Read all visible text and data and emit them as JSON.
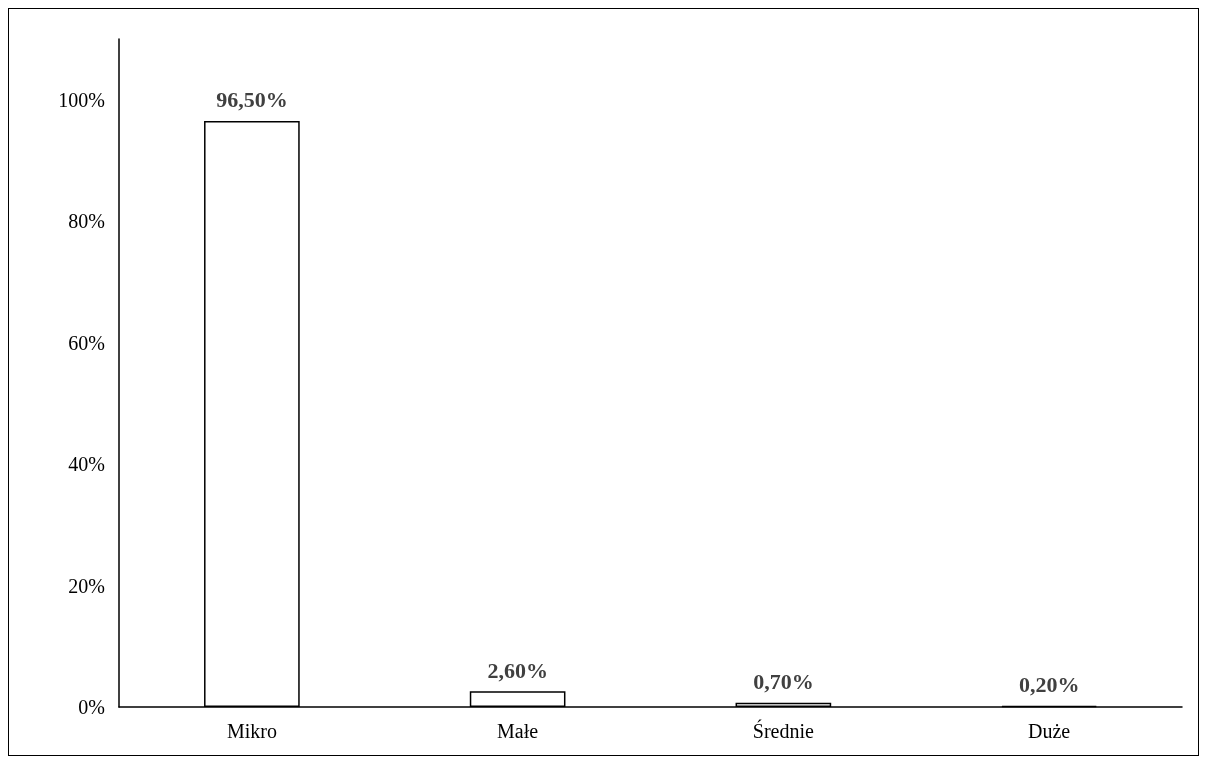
{
  "chart_data": {
    "type": "bar",
    "categories": [
      "Mikro",
      "Małe",
      "Średnie",
      "Duże"
    ],
    "values": [
      96.5,
      2.6,
      0.7,
      0.2
    ],
    "value_labels": [
      "96,50%",
      "2,60%",
      "0,70%",
      "0,20%"
    ],
    "color": "#ffffff",
    "ylim": [
      0,
      110
    ],
    "yticks": [
      {
        "value": 0,
        "label": "0%"
      },
      {
        "value": 20,
        "label": "20%"
      },
      {
        "value": 40,
        "label": "40%"
      },
      {
        "value": 60,
        "label": "60%"
      },
      {
        "value": 80,
        "label": "80%"
      },
      {
        "value": 100,
        "label": "100%"
      }
    ],
    "grid": false
  }
}
